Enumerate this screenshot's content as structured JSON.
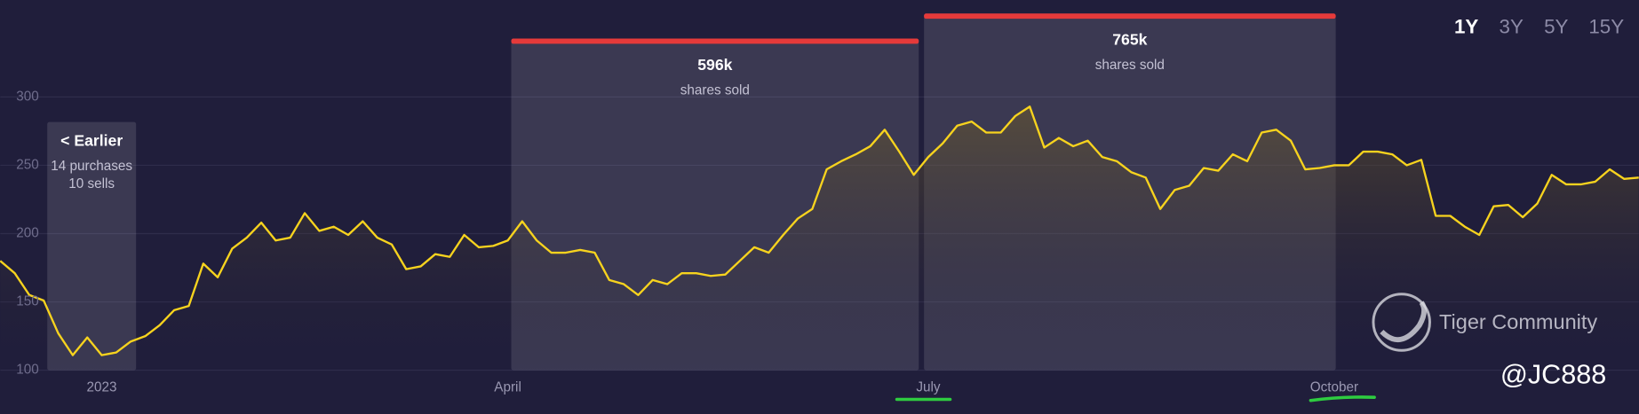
{
  "chart_data": {
    "type": "line",
    "categories": [
      null,
      null,
      null,
      null,
      null,
      null,
      null,
      "2023",
      null,
      null,
      null,
      null,
      null,
      null,
      null,
      null,
      null,
      null,
      null,
      null,
      null,
      null,
      null,
      null,
      null,
      null,
      null,
      null,
      null,
      null,
      null,
      null,
      null,
      null,
      null,
      "April",
      null,
      null,
      null,
      null,
      null,
      null,
      null,
      null,
      null,
      null,
      null,
      null,
      null,
      null,
      null,
      null,
      null,
      null,
      null,
      null,
      null,
      null,
      null,
      null,
      null,
      null,
      null,
      null,
      "July",
      null,
      null,
      null,
      null,
      null,
      null,
      null,
      null,
      null,
      null,
      null,
      null,
      null,
      null,
      null,
      null,
      null,
      null,
      null,
      null,
      null,
      null,
      null,
      null,
      null,
      null,
      null,
      "October",
      null,
      null,
      null,
      null,
      null,
      null,
      null,
      null,
      null,
      null,
      null,
      null,
      null,
      null,
      null,
      null,
      null,
      null,
      null,
      null,
      null
    ],
    "values": [
      180,
      171,
      155,
      151,
      127,
      111,
      124,
      111,
      113,
      121,
      125,
      133,
      144,
      147,
      178,
      168,
      189,
      197,
      208,
      195,
      197,
      215,
      202,
      205,
      199,
      209,
      197,
      192,
      174,
      176,
      185,
      183,
      199,
      190,
      191,
      195,
      209,
      195,
      186,
      186,
      188,
      186,
      166,
      163,
      155,
      166,
      163,
      171,
      171,
      169,
      170,
      180,
      190,
      186,
      199,
      211,
      218,
      247,
      253,
      258,
      264,
      276,
      260,
      243,
      256,
      266,
      279,
      282,
      274,
      274,
      286,
      293,
      263,
      270,
      264,
      268,
      256,
      253,
      245,
      241,
      218,
      232,
      235,
      248,
      246,
      258,
      253,
      274,
      276,
      268,
      247,
      248,
      250,
      250,
      260,
      260,
      258,
      250,
      254,
      213,
      213,
      205,
      199,
      220,
      221,
      212,
      222,
      243,
      236,
      236,
      238,
      247,
      240,
      241
    ],
    "color": "#f7d31e",
    "ylim": [
      100,
      300
    ],
    "yticks": [
      100,
      150,
      200,
      250,
      300
    ],
    "grid": true,
    "annotations": [
      {
        "title": "< Earlier",
        "lines": [
          "14 purchases",
          "10 sells"
        ]
      },
      {
        "title": "596k",
        "lines": [
          "shares sold"
        ]
      },
      {
        "title": "765k",
        "lines": [
          "shares sold"
        ]
      }
    ]
  },
  "range_buttons": [
    "1Y",
    "3Y",
    "5Y",
    "15Y"
  ],
  "active_range": "1Y",
  "watermark": {
    "brand": "Tiger Community",
    "handle": "@JC888"
  }
}
